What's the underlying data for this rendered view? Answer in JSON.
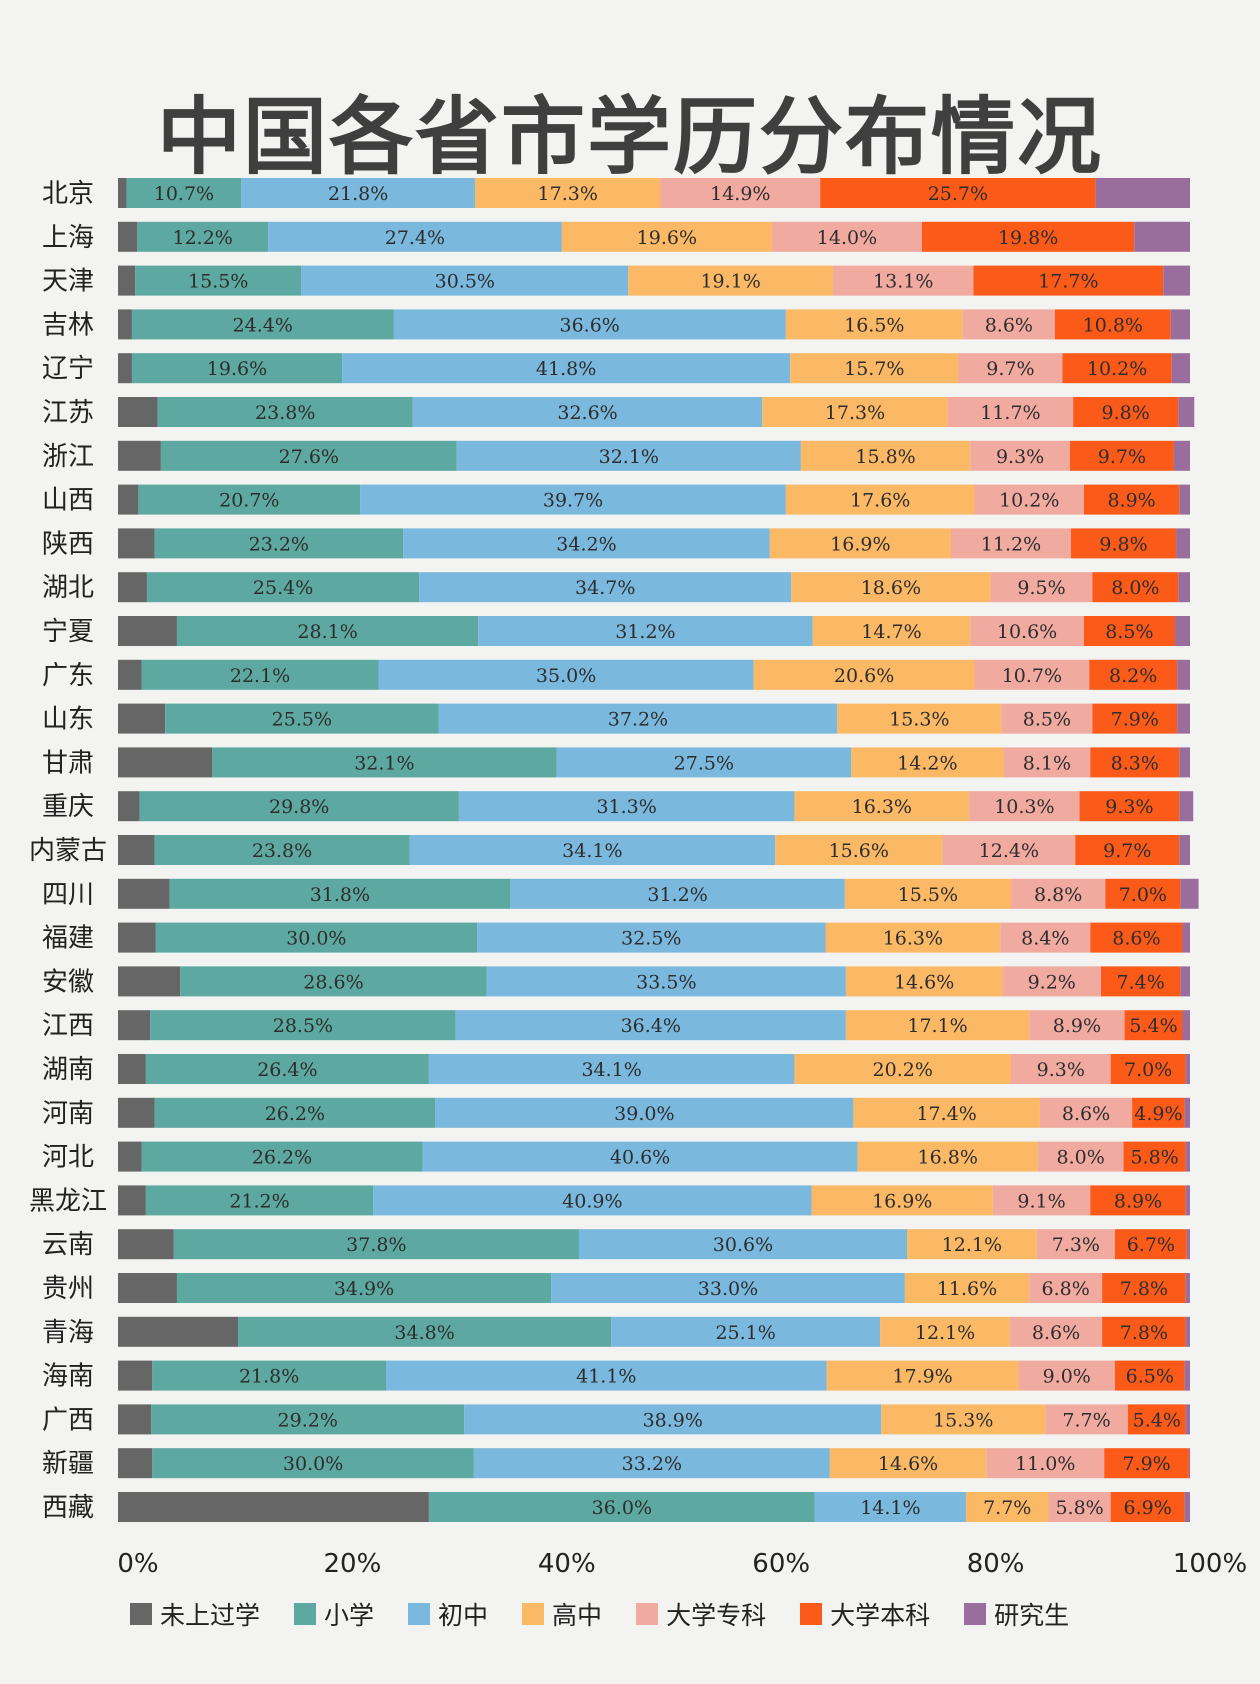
{
  "title": "中国各省市学历分布情况",
  "chart_data": {
    "type": "bar",
    "orientation": "horizontal",
    "stacked": true,
    "xlim": [
      0,
      100
    ],
    "xticks": [
      "0%",
      "20%",
      "40%",
      "60%",
      "80%",
      "100%"
    ],
    "categories": [
      "北京",
      "上海",
      "天津",
      "吉林",
      "辽宁",
      "江苏",
      "浙江",
      "山西",
      "陕西",
      "湖北",
      "宁夏",
      "广东",
      "山东",
      "甘肃",
      "重庆",
      "内蒙古",
      "四川",
      "福建",
      "安徽",
      "江西",
      "湖南",
      "河南",
      "河北",
      "黑龙江",
      "云南",
      "贵州",
      "青海",
      "海南",
      "广西",
      "新疆",
      "西藏"
    ],
    "series": [
      {
        "name": "未上过学",
        "color": "#666666",
        "labeled": false,
        "values": [
          0.8,
          1.8,
          1.6,
          1.3,
          1.3,
          3.7,
          4.0,
          1.9,
          3.4,
          2.7,
          5.5,
          2.2,
          4.4,
          8.8,
          2.0,
          3.4,
          4.8,
          3.5,
          5.8,
          3.0,
          2.6,
          3.4,
          2.2,
          2.6,
          5.2,
          5.5,
          11.2,
          3.2,
          3.1,
          3.2,
          29.0
        ]
      },
      {
        "name": "小学",
        "color": "#5da8a0",
        "labeled": true,
        "values": [
          10.7,
          12.2,
          15.5,
          24.4,
          19.6,
          23.8,
          27.6,
          20.7,
          23.2,
          25.4,
          28.1,
          22.1,
          25.5,
          32.1,
          29.8,
          23.8,
          31.8,
          30.0,
          28.6,
          28.5,
          26.4,
          26.2,
          26.2,
          21.2,
          37.8,
          34.9,
          34.8,
          21.8,
          29.2,
          30.0,
          36.0
        ]
      },
      {
        "name": "初中",
        "color": "#7ab8de",
        "labeled": true,
        "values": [
          21.8,
          27.4,
          30.5,
          36.6,
          41.8,
          32.6,
          32.1,
          39.7,
          34.2,
          34.7,
          31.2,
          35.0,
          37.2,
          27.5,
          31.3,
          34.1,
          31.2,
          32.5,
          33.5,
          36.4,
          34.1,
          39.0,
          40.6,
          40.9,
          30.6,
          33.0,
          25.1,
          41.1,
          38.9,
          33.2,
          14.1
        ]
      },
      {
        "name": "高中",
        "color": "#fbb865",
        "labeled": true,
        "values": [
          17.3,
          19.6,
          19.1,
          16.5,
          15.7,
          17.3,
          15.8,
          17.6,
          16.9,
          18.6,
          14.7,
          20.6,
          15.3,
          14.2,
          16.3,
          15.6,
          15.5,
          16.3,
          14.6,
          17.1,
          20.2,
          17.4,
          16.8,
          16.9,
          12.1,
          11.6,
          12.1,
          17.9,
          15.3,
          14.6,
          7.7
        ]
      },
      {
        "name": "大学专科",
        "color": "#f1aaa0",
        "labeled": true,
        "values": [
          14.9,
          14.0,
          13.1,
          8.6,
          9.7,
          11.7,
          9.3,
          10.2,
          11.2,
          9.5,
          10.6,
          10.7,
          8.5,
          8.1,
          10.3,
          12.4,
          8.8,
          8.4,
          9.2,
          8.9,
          9.3,
          8.6,
          8.0,
          9.1,
          7.3,
          6.8,
          8.6,
          9.0,
          7.7,
          11.0,
          5.8
        ]
      },
      {
        "name": "大学本科",
        "color": "#fb5a19",
        "labeled": true,
        "values": [
          25.7,
          19.8,
          17.7,
          10.8,
          10.2,
          9.8,
          9.7,
          8.9,
          9.8,
          8.0,
          8.5,
          8.2,
          7.9,
          8.3,
          9.3,
          9.7,
          7.0,
          8.6,
          7.4,
          5.4,
          7.0,
          4.9,
          5.8,
          8.9,
          6.7,
          7.8,
          7.8,
          6.5,
          5.4,
          7.9,
          6.9
        ]
      },
      {
        "name": "研究生",
        "color": "#9a6e9c",
        "labeled": false,
        "values": [
          8.8,
          5.2,
          2.5,
          1.8,
          1.7,
          1.5,
          1.5,
          1.0,
          1.3,
          1.1,
          1.4,
          1.2,
          1.2,
          1.0,
          1.3,
          1.0,
          1.7,
          0.7,
          0.9,
          0.7,
          0.4,
          0.5,
          0.4,
          0.4,
          0.3,
          0.4,
          0.4,
          0.5,
          0.4,
          0.1,
          0.5
        ]
      }
    ],
    "legend_position": "bottom",
    "grid": false
  }
}
